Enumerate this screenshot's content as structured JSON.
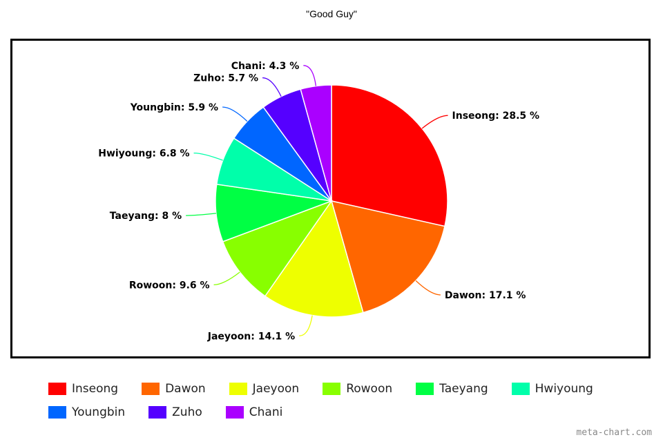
{
  "chart_data": {
    "type": "pie",
    "title": "\"Good Guy\"",
    "slices": [
      {
        "name": "Inseong",
        "value": 28.5,
        "label": "Inseong: 28.5 %",
        "color": "#ff0000"
      },
      {
        "name": "Dawon",
        "value": 17.1,
        "label": "Dawon: 17.1 %",
        "color": "#ff6600"
      },
      {
        "name": "Jaeyoon",
        "value": 14.1,
        "label": "Jaeyoon: 14.1 %",
        "color": "#eeff00"
      },
      {
        "name": "Rowoon",
        "value": 9.6,
        "label": "Rowoon: 9.6 %",
        "color": "#88ff00"
      },
      {
        "name": "Taeyang",
        "value": 8,
        "label": "Taeyang: 8 %",
        "color": "#00ff44"
      },
      {
        "name": "Hwiyoung",
        "value": 6.8,
        "label": "Hwiyoung: 6.8 %",
        "color": "#00ffaa"
      },
      {
        "name": "Youngbin",
        "value": 5.9,
        "label": "Youngbin: 5.9 %",
        "color": "#0066ff"
      },
      {
        "name": "Zuho",
        "value": 5.7,
        "label": "Zuho: 5.7 %",
        "color": "#5500ff"
      },
      {
        "name": "Chani",
        "value": 4.3,
        "label": "Chani: 4.3 %",
        "color": "#aa00ff"
      }
    ],
    "legend_position": "bottom"
  },
  "credit": "meta-chart.com"
}
